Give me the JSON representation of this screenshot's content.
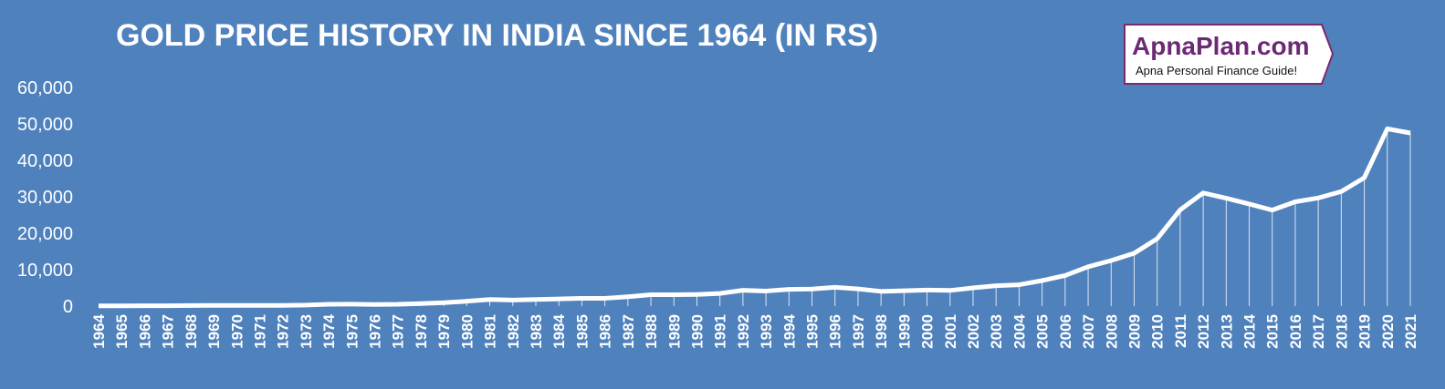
{
  "chart_data": {
    "type": "line",
    "title": "GOLD PRICE HISTORY IN INDIA SINCE 1964 (IN RS)",
    "categories": [
      "1964",
      "1965",
      "1966",
      "1967",
      "1968",
      "1969",
      "1970",
      "1971",
      "1972",
      "1973",
      "1974",
      "1975",
      "1976",
      "1977",
      "1978",
      "1979",
      "1980",
      "1981",
      "1982",
      "1983",
      "1984",
      "1985",
      "1986",
      "1987",
      "1988",
      "1989",
      "1990",
      "1991",
      "1992",
      "1993",
      "1994",
      "1995",
      "1996",
      "1997",
      "1998",
      "1999",
      "2000",
      "2001",
      "2002",
      "2003",
      "2004",
      "2005",
      "2006",
      "2007",
      "2008",
      "2009",
      "2010",
      "2011",
      "2012",
      "2013",
      "2014",
      "2015",
      "2016",
      "2017",
      "2018",
      "2019",
      "2020",
      "2021"
    ],
    "values": [
      63,
      72,
      84,
      103,
      162,
      176,
      184,
      193,
      202,
      279,
      506,
      540,
      432,
      486,
      685,
      937,
      1330,
      1800,
      1645,
      1800,
      1970,
      2130,
      2140,
      2570,
      3130,
      3140,
      3200,
      3466,
      4334,
      4140,
      4598,
      4680,
      5160,
      4725,
      4045,
      4234,
      4400,
      4300,
      4990,
      5600,
      5850,
      7000,
      8400,
      10800,
      12500,
      14500,
      18500,
      26400,
      31050,
      29600,
      28006,
      26343,
      28623,
      29667,
      31438,
      35220,
      48651,
      47500
    ],
    "color": "#ffffff",
    "ylim": [
      0,
      60000
    ],
    "yticks": [
      0,
      {
        "value": 10000,
        "label": "10,000"
      },
      {
        "value": 20000,
        "label": "20,000"
      },
      {
        "value": 30000,
        "label": "30,000"
      },
      {
        "value": 40000,
        "label": "40,000"
      },
      {
        "value": 50000,
        "label": "50,000"
      },
      {
        "value": 60000,
        "label": "60,000"
      }
    ],
    "grid": false,
    "drop_lines": true
  },
  "logo": {
    "name": "ApnaPlan.com",
    "tagline": "Apna Personal Finance Guide!"
  }
}
